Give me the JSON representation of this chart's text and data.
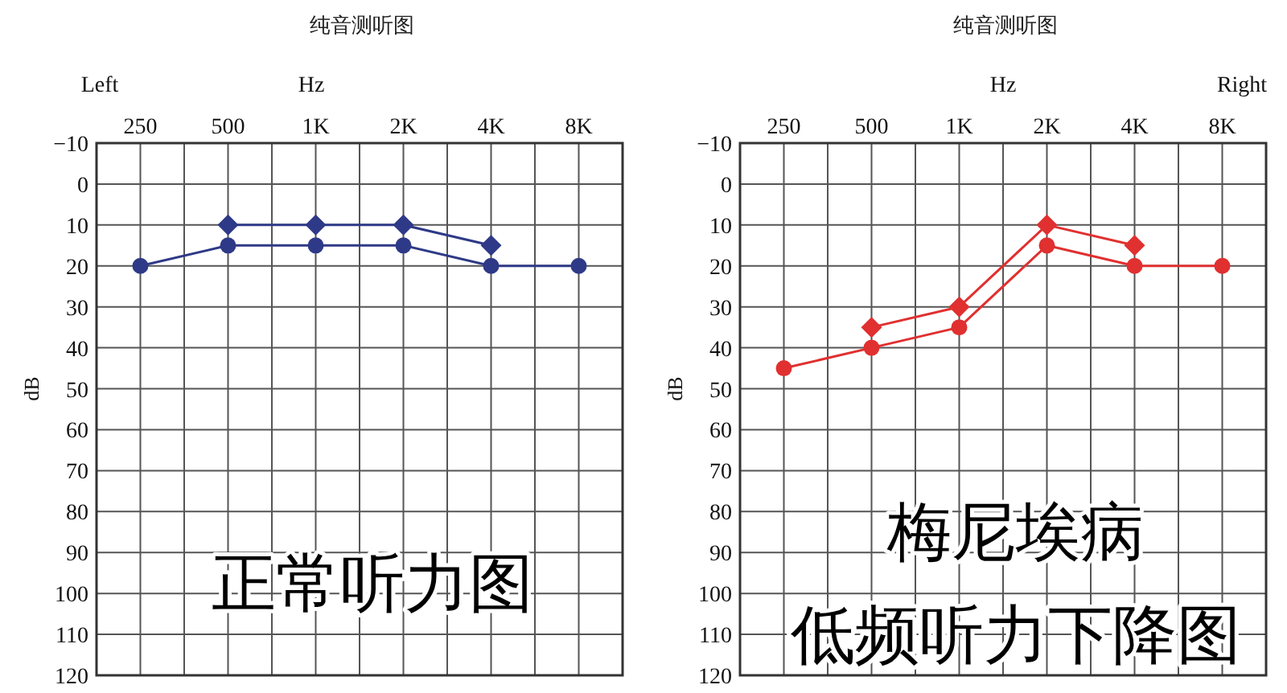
{
  "chart_data": [
    {
      "type": "line",
      "title": "纯音测听图",
      "xlabel": "Hz",
      "ylabel": "dB",
      "categories": [
        "250",
        "500",
        "1K",
        "2K",
        "4K",
        "8K"
      ],
      "series": [
        {
          "color": "#2e3a87",
          "marker": "diamond",
          "values": [
            null,
            10,
            10,
            10,
            15,
            null
          ]
        },
        {
          "color": "#2e3a87",
          "marker": "circle",
          "values": [
            20,
            15,
            15,
            15,
            20,
            20
          ]
        }
      ],
      "ylim": [
        120,
        -10
      ],
      "yticks": [
        {
          "value": -10,
          "label": "−10"
        },
        0,
        10,
        20,
        30,
        40,
        50,
        60,
        70,
        80,
        90,
        100,
        110,
        120
      ],
      "grid": true,
      "annotations": [
        "Left",
        "正常听力图"
      ]
    },
    {
      "type": "line",
      "title": "纯音测听图",
      "xlabel": "Hz",
      "ylabel": "dB",
      "categories": [
        "250",
        "500",
        "1K",
        "2K",
        "4K",
        "8K"
      ],
      "series": [
        {
          "color": "#e03030",
          "marker": "diamond",
          "values": [
            null,
            35,
            30,
            10,
            15,
            null
          ]
        },
        {
          "color": "#e03030",
          "marker": "circle",
          "values": [
            45,
            40,
            35,
            15,
            20,
            20
          ]
        }
      ],
      "ylim": [
        120,
        -10
      ],
      "yticks": [
        {
          "value": -10,
          "label": "−10"
        },
        0,
        10,
        20,
        30,
        40,
        50,
        60,
        70,
        80,
        90,
        100,
        110,
        120
      ],
      "grid": true,
      "annotations": [
        "Right",
        "梅尼埃病",
        "低频听力下降图"
      ]
    }
  ]
}
